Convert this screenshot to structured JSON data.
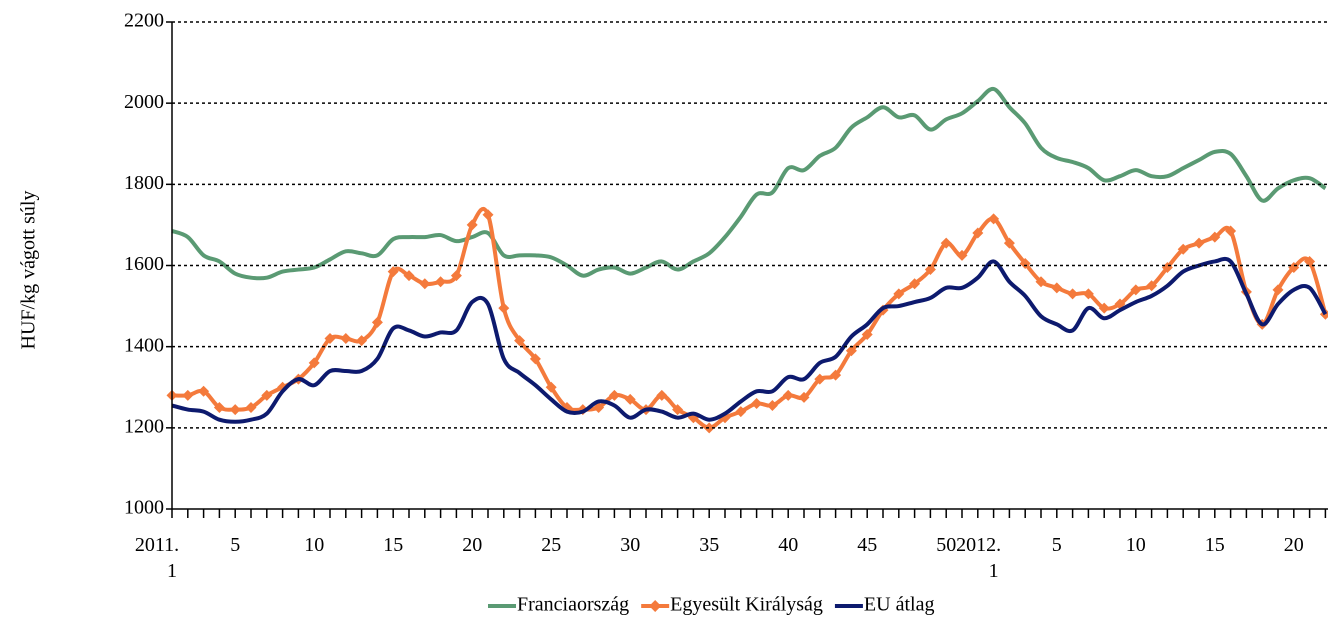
{
  "chart_data": {
    "type": "line",
    "y_label": "HUF/kg vágott súly",
    "categories": [
      "2011.\n1",
      null,
      null,
      null,
      "5",
      null,
      null,
      null,
      null,
      "10",
      null,
      null,
      null,
      null,
      "15",
      null,
      null,
      null,
      null,
      "20",
      null,
      null,
      null,
      null,
      "25",
      null,
      null,
      null,
      null,
      "30",
      null,
      null,
      null,
      null,
      "35",
      null,
      null,
      null,
      null,
      "40",
      null,
      null,
      null,
      null,
      "45",
      null,
      null,
      null,
      null,
      "50",
      null,
      null,
      "2012.\n1",
      null,
      null,
      null,
      "5",
      null,
      null,
      null,
      null,
      "10",
      null,
      null,
      null,
      null,
      "15",
      null,
      null,
      null,
      null,
      "20",
      null,
      null
    ],
    "series": [
      {
        "name": "Franciaország",
        "color": "#5a9a73",
        "marker": false,
        "values": [
          1685,
          1670,
          1625,
          1610,
          1580,
          1570,
          1570,
          1585,
          1590,
          1595,
          1615,
          1635,
          1630,
          1625,
          1665,
          1670,
          1670,
          1675,
          1660,
          1670,
          1680,
          1625,
          1625,
          1625,
          1620,
          1600,
          1575,
          1590,
          1595,
          1580,
          1595,
          1610,
          1590,
          1610,
          1630,
          1670,
          1720,
          1775,
          1780,
          1840,
          1835,
          1870,
          1890,
          1940,
          1965,
          1990,
          1965,
          1970,
          1935,
          1960,
          1975,
          2005,
          2035,
          1990,
          1950,
          1890,
          1865,
          1855,
          1840,
          1810,
          1820,
          1835,
          1820,
          1820,
          1840,
          1860,
          1880,
          1875,
          1820,
          1760,
          1790,
          1810,
          1815,
          1790
        ]
      },
      {
        "name": "Egyesült Királyság",
        "color": "#f47a3c",
        "marker": true,
        "values": [
          1280,
          1280,
          1290,
          1250,
          1245,
          1250,
          1280,
          1300,
          1320,
          1360,
          1420,
          1420,
          1415,
          1460,
          1585,
          1575,
          1555,
          1560,
          1575,
          1700,
          1725,
          1495,
          1415,
          1370,
          1300,
          1250,
          1245,
          1250,
          1280,
          1270,
          1245,
          1280,
          1245,
          1225,
          1200,
          1225,
          1240,
          1260,
          1255,
          1280,
          1275,
          1320,
          1330,
          1390,
          1430,
          1490,
          1530,
          1555,
          1590,
          1655,
          1625,
          1680,
          1715,
          1655,
          1605,
          1560,
          1545,
          1530,
          1530,
          1495,
          1505,
          1540,
          1550,
          1595,
          1640,
          1655,
          1670,
          1685,
          1535,
          1455,
          1540,
          1595,
          1610,
          1480
        ]
      },
      {
        "name": "EU átlag",
        "color": "#0d1a6e",
        "marker": false,
        "values": [
          1255,
          1245,
          1240,
          1220,
          1215,
          1220,
          1235,
          1290,
          1320,
          1305,
          1340,
          1340,
          1340,
          1370,
          1445,
          1440,
          1425,
          1435,
          1440,
          1510,
          1505,
          1370,
          1335,
          1305,
          1270,
          1240,
          1240,
          1265,
          1255,
          1225,
          1245,
          1240,
          1225,
          1235,
          1220,
          1235,
          1265,
          1290,
          1290,
          1325,
          1320,
          1360,
          1375,
          1425,
          1455,
          1495,
          1500,
          1510,
          1520,
          1545,
          1545,
          1570,
          1610,
          1560,
          1525,
          1475,
          1455,
          1440,
          1495,
          1470,
          1490,
          1510,
          1525,
          1550,
          1585,
          1600,
          1610,
          1610,
          1530,
          1455,
          1505,
          1540,
          1545,
          1480
        ]
      }
    ],
    "ylim": [
      1000,
      2200
    ],
    "yticks": [
      1000,
      1200,
      1400,
      1600,
      1800,
      2000,
      2200
    ],
    "grid": true,
    "legend": "bottom"
  }
}
